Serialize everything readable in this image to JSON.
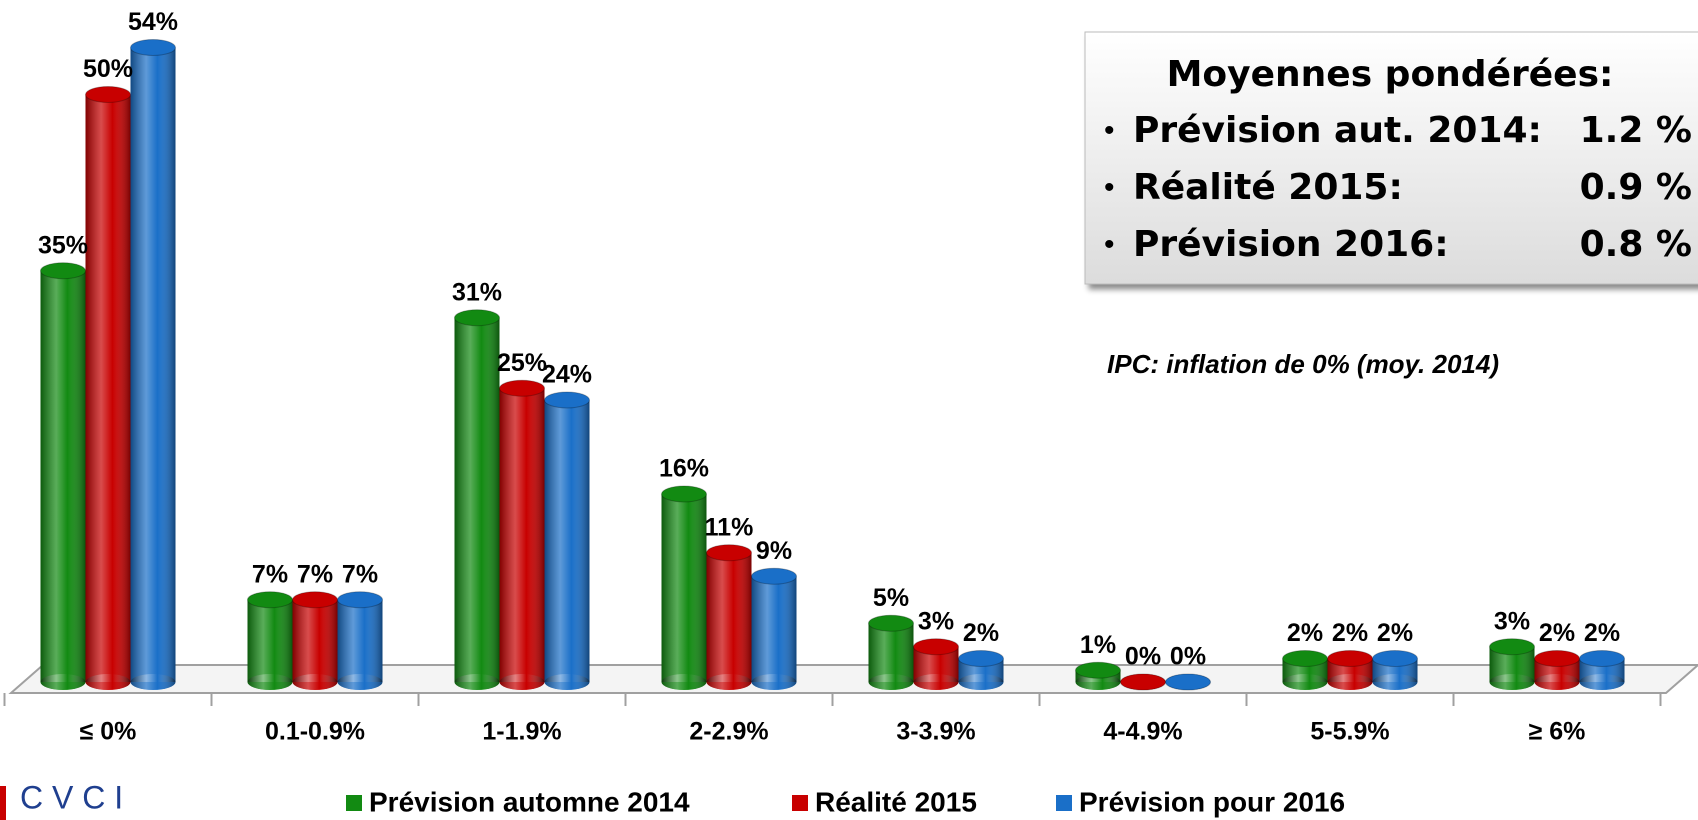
{
  "chart_data": {
    "type": "bar",
    "categories": [
      "≤ 0%",
      "0.1-0.9%",
      "1-1.9%",
      "2-2.9%",
      "3-3.9%",
      "4-4.9%",
      "5-5.9%",
      "≥ 6%"
    ],
    "series": [
      {
        "name": "Prévision automne 2014",
        "color": "#128a12",
        "values": [
          35,
          7,
          31,
          16,
          5,
          1,
          2,
          3
        ],
        "value_labels": [
          "35%",
          "7%",
          "31%",
          "16%",
          "5%",
          "1%",
          "2%",
          "3%"
        ]
      },
      {
        "name": "Réalité 2015",
        "color": "#c80000",
        "values": [
          50,
          7,
          25,
          11,
          3,
          0,
          2,
          2
        ],
        "value_labels": [
          "50%",
          "7%",
          "25%",
          "11%",
          "3%",
          "0%",
          "2%",
          "2%"
        ]
      },
      {
        "name": "Prévision pour 2016",
        "color": "#1a6fc8",
        "values": [
          54,
          7,
          24,
          9,
          2,
          0,
          2,
          2
        ],
        "value_labels": [
          "54%",
          "7%",
          "24%",
          "9%",
          "2%",
          "0%",
          "2%",
          "2%"
        ]
      }
    ],
    "annotation": "IPC: inflation de 0% (moy. 2014)"
  },
  "info_box": {
    "title": "Moyennes pondérées:",
    "rows": [
      {
        "label": "Prévision aut. 2014:",
        "value": "1.2 %"
      },
      {
        "label": "Réalité 2015:",
        "value": "0.9 %"
      },
      {
        "label": "Prévision 2016:",
        "value": "0.8 %"
      }
    ]
  },
  "logo": "C V C I"
}
